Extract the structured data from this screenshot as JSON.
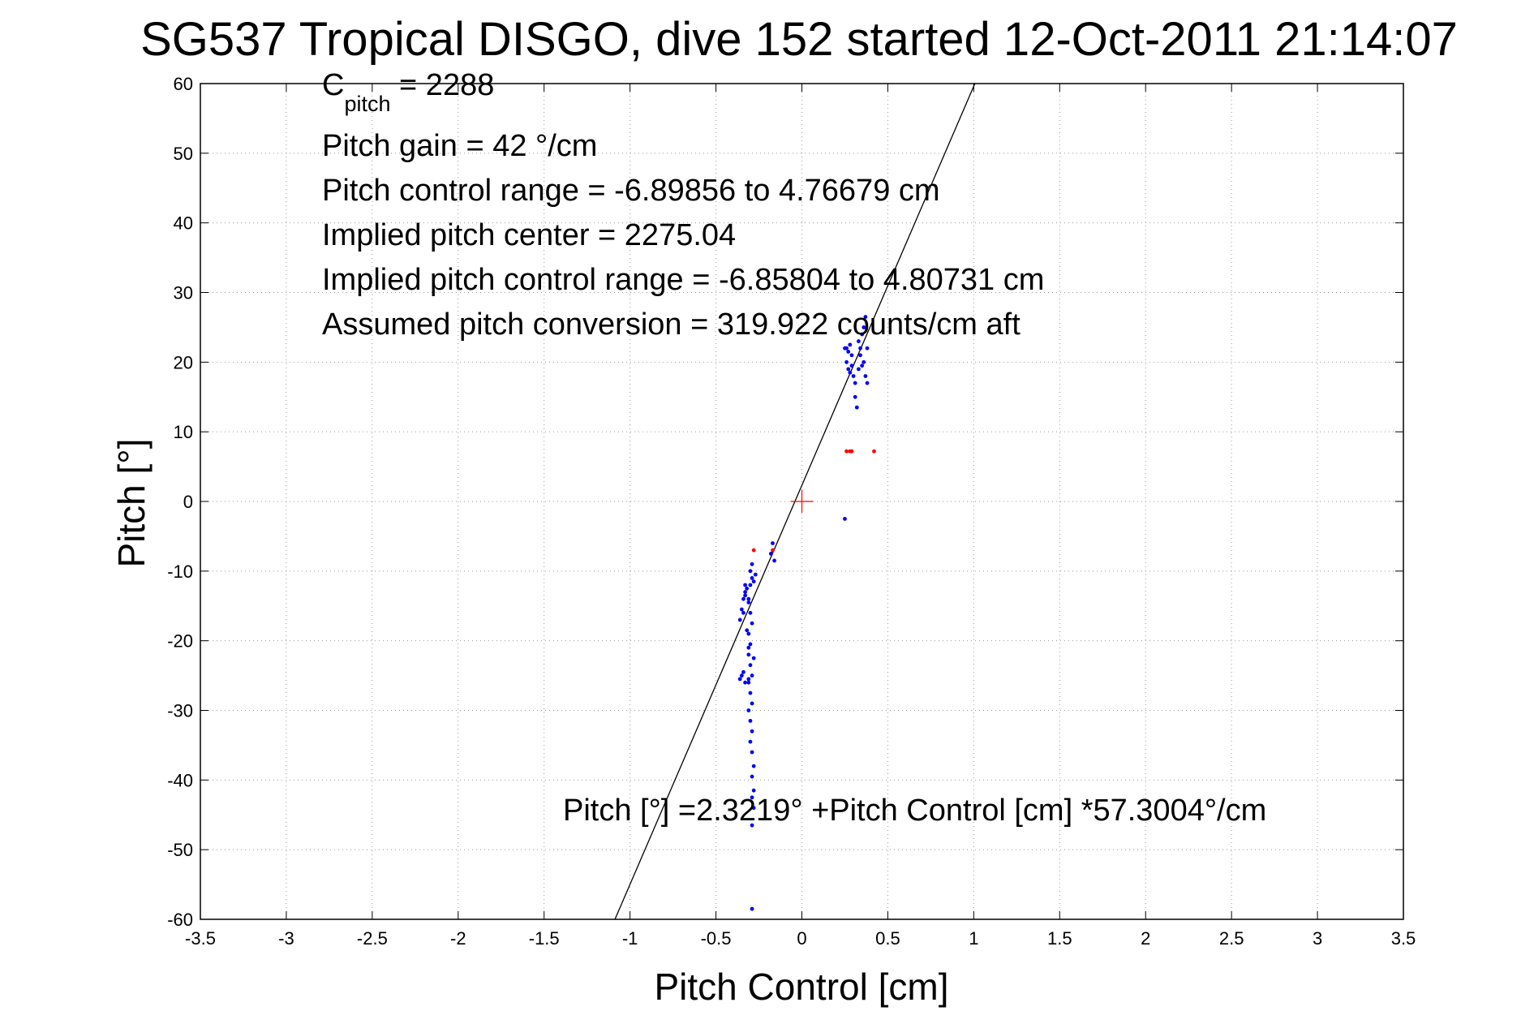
{
  "chart_data": {
    "type": "scatter",
    "title": "SG537 Tropical DISGO, dive 152 started 12-Oct-2011 21:14:07",
    "xlabel": "Pitch Control [cm]",
    "ylabel": "Pitch [°]",
    "xlim": [
      -3.5,
      3.5
    ],
    "ylim": [
      -60,
      60
    ],
    "xticks": [
      -3.5,
      -3,
      -2.5,
      -2,
      -1.5,
      -1,
      -0.5,
      0,
      0.5,
      1,
      1.5,
      2,
      2.5,
      3,
      3.5
    ],
    "xtick_labels": [
      "-3.5",
      "-3",
      "-2.5",
      "-2",
      "-1.5",
      "-1",
      "-0.5",
      "0",
      "0.5",
      "1",
      "1.5",
      "2",
      "2.5",
      "3",
      "3.5"
    ],
    "yticks": [
      -60,
      -50,
      -40,
      -30,
      -20,
      -10,
      0,
      10,
      20,
      30,
      40,
      50,
      60
    ],
    "ytick_labels": [
      "-60",
      "-50",
      "-40",
      "-30",
      "-20",
      "-10",
      "0",
      "10",
      "20",
      "30",
      "40",
      "50",
      "60"
    ],
    "grid": true,
    "annotations": {
      "c_pitch_base": "C",
      "c_pitch_sub": "pitch",
      "c_pitch_value": " = 2288",
      "pitch_gain": "Pitch gain = 42 °/cm",
      "control_range": "Pitch control range = -6.89856 to 4.76679 cm",
      "implied_center": "Implied pitch center = 2275.04",
      "implied_range": "Implied pitch control range = -6.85804 to 4.80731 cm",
      "conversion": "Assumed pitch conversion = 319.922 counts/cm aft",
      "fit_equation": "Pitch [°] =2.3219° +Pitch Control [cm] *57.3004°/cm"
    },
    "fit_line": {
      "intercept": 2.3219,
      "slope": 57.3004,
      "color": "#000000"
    },
    "center_marker": {
      "x": 0,
      "y": 0,
      "color": "#ff0000"
    },
    "series": [
      {
        "color": "#0000ff",
        "points": [
          [
            0.26,
            22
          ],
          [
            0.27,
            21.5
          ],
          [
            0.28,
            22.5
          ],
          [
            0.26,
            20
          ],
          [
            0.27,
            19
          ],
          [
            0.28,
            18.5
          ],
          [
            0.29,
            19.5
          ],
          [
            0.3,
            18
          ],
          [
            0.31,
            17
          ],
          [
            0.31,
            15
          ],
          [
            0.32,
            13.5
          ],
          [
            0.33,
            19
          ],
          [
            0.34,
            21
          ],
          [
            0.33,
            23
          ],
          [
            0.35,
            24
          ],
          [
            0.36,
            25
          ],
          [
            0.37,
            26.5
          ],
          [
            0.38,
            22
          ],
          [
            0.37,
            18
          ],
          [
            0.38,
            17
          ],
          [
            0.36,
            20
          ],
          [
            0.34,
            22
          ],
          [
            0.35,
            19.5
          ],
          [
            0.29,
            21
          ],
          [
            0.25,
            22
          ],
          [
            0.25,
            -2.5
          ],
          [
            -0.33,
            -13
          ],
          [
            -0.34,
            -14
          ],
          [
            -0.35,
            -15.5
          ],
          [
            -0.36,
            -17
          ],
          [
            -0.34,
            -16
          ],
          [
            -0.33,
            -13.5
          ],
          [
            -0.32,
            -12.5
          ],
          [
            -0.31,
            -14
          ],
          [
            -0.3,
            -12
          ],
          [
            -0.29,
            -11
          ],
          [
            -0.28,
            -11.5
          ],
          [
            -0.27,
            -10.5
          ],
          [
            -0.29,
            -9
          ],
          [
            -0.3,
            -10
          ],
          [
            -0.31,
            -14.5
          ],
          [
            -0.3,
            -16
          ],
          [
            -0.29,
            -17.5
          ],
          [
            -0.31,
            -19
          ],
          [
            -0.3,
            -20.5
          ],
          [
            -0.31,
            -22
          ],
          [
            -0.3,
            -23.5
          ],
          [
            -0.29,
            -25
          ],
          [
            -0.31,
            -26
          ],
          [
            -0.3,
            -27.5
          ],
          [
            -0.29,
            -29
          ],
          [
            -0.31,
            -30
          ],
          [
            -0.3,
            -31.5
          ],
          [
            -0.29,
            -33
          ],
          [
            -0.3,
            -34.5
          ],
          [
            -0.31,
            -25.5
          ],
          [
            -0.35,
            -25
          ],
          [
            -0.36,
            -25.5
          ],
          [
            -0.34,
            -24.5
          ],
          [
            -0.33,
            -26
          ],
          [
            -0.29,
            -36
          ],
          [
            -0.28,
            -38
          ],
          [
            -0.29,
            -39.5
          ],
          [
            -0.28,
            -41.5
          ],
          [
            -0.29,
            -42.5
          ],
          [
            -0.28,
            -44
          ],
          [
            -0.29,
            -46.5
          ],
          [
            -0.29,
            -58.5
          ],
          [
            -0.17,
            -6
          ],
          [
            -0.16,
            -8.5
          ],
          [
            -0.18,
            -7.5
          ],
          [
            -0.32,
            -18.5
          ],
          [
            -0.31,
            -21
          ],
          [
            -0.28,
            -22.5
          ],
          [
            -0.33,
            -12
          ]
        ]
      },
      {
        "color": "#ff0000",
        "points": [
          [
            0.26,
            7.2
          ],
          [
            0.28,
            7.2
          ],
          [
            0.29,
            7.2
          ],
          [
            0.42,
            7.2
          ],
          [
            -0.28,
            -7
          ],
          [
            -0.17,
            -7
          ]
        ]
      }
    ]
  }
}
